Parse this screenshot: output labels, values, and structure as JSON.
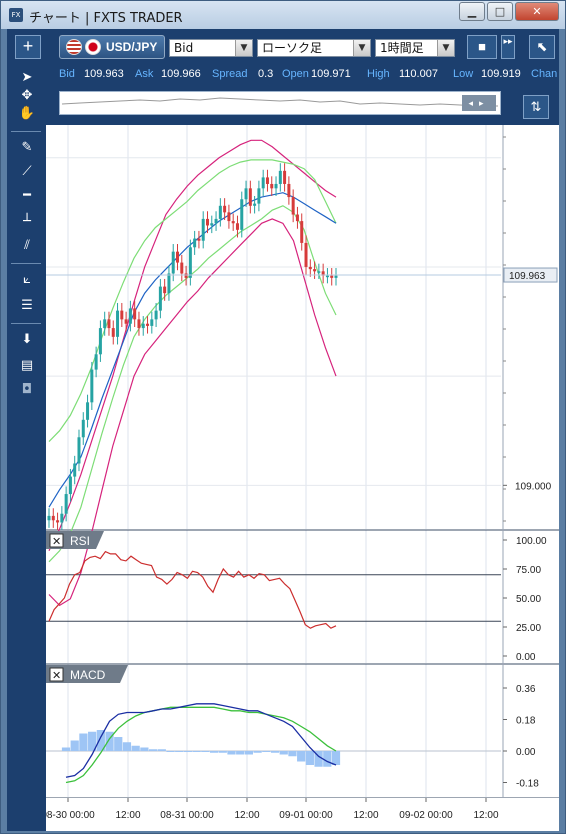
{
  "window": {
    "icon_text": "FX",
    "title": "チャート | FXTS TRADER",
    "buttons": [
      "minimize",
      "maximize",
      "close"
    ]
  },
  "toolbar": {
    "add_label": "+",
    "symbol": "USD/JPY",
    "price_type": "Bid",
    "chart_type": "ローソク足",
    "timeframe": "1時間足",
    "dropdown_arrow": "▼"
  },
  "quotes": [
    {
      "label": "Bid",
      "value": "109.963"
    },
    {
      "label": "Ask",
      "value": "109.966"
    },
    {
      "label": "Spread",
      "value": "0.3"
    },
    {
      "label": "Open",
      "value": "109.971"
    },
    {
      "label": "High",
      "value": "110.007"
    },
    {
      "label": "Low",
      "value": "109.919"
    },
    {
      "label": "Chan",
      "value": ""
    }
  ],
  "tools": [
    "cursor-arrow-icon",
    "crosshair-move-icon",
    "hand-pan-icon",
    "pen-icon",
    "trendline-icon",
    "horizontal-line-icon",
    "vertical-line-icon",
    "channel-icon",
    "fibonacci-fan-icon",
    "fibonacci-retracement-icon",
    "download-icon",
    "list-icon",
    "camera-icon"
  ],
  "panels": {
    "rsi": {
      "label": "RSI",
      "close": "✕"
    },
    "macd": {
      "label": "MACD",
      "close": "✕"
    }
  },
  "colors": {
    "toolbar_bg": "#1c3f6e",
    "candle_up": "#26a3a3",
    "candle_down": "#d63b3b",
    "bollinger_outer": "#d6237c",
    "bollinger_inner": "#7ddd76",
    "moving_average": "#1f63c5",
    "rsi_line": "#cc2e2e",
    "macd_line": "#1a2ea3",
    "signal_line": "#3cc03c",
    "histogram": "#9ec5f5"
  },
  "chart_data": [
    {
      "type": "candlestick",
      "title": "",
      "current_price": 109.963,
      "current_price_label": "109.963",
      "price_tick_label": "109.000",
      "ylim": [
        108.8,
        110.65
      ],
      "x_ticks": [
        "08-30 00:00",
        "12:00",
        "08-31 00:00",
        "12:00",
        "09-01 00:00",
        "12:00",
        "09-02 00:00",
        "12:00"
      ],
      "close_series": [
        108.86,
        108.84,
        108.83,
        108.87,
        108.96,
        109.04,
        109.1,
        109.22,
        109.3,
        109.38,
        109.53,
        109.6,
        109.72,
        109.76,
        109.72,
        109.68,
        109.8,
        109.76,
        109.74,
        109.81,
        109.76,
        109.72,
        109.74,
        109.73,
        109.76,
        109.8,
        109.91,
        109.88,
        109.97,
        110.07,
        110.02,
        109.97,
        109.95,
        110.09,
        110.13,
        110.12,
        110.22,
        110.19,
        110.2,
        110.22,
        110.28,
        110.25,
        110.21,
        110.2,
        110.17,
        110.31,
        110.36,
        110.28,
        110.29,
        110.36,
        110.41,
        110.38,
        110.36,
        110.38,
        110.44,
        110.38,
        110.32,
        110.24,
        110.21,
        110.11,
        110.0,
        109.99,
        109.98,
        109.98,
        109.96,
        109.96,
        109.95,
        109.96
      ],
      "bollinger": {
        "upper": [
          108.7,
          108.8,
          108.92,
          109.05,
          109.2,
          109.35,
          109.5,
          109.67,
          109.84,
          110.0,
          110.12,
          110.24,
          110.31,
          110.37,
          110.42,
          110.46,
          110.5,
          110.53,
          110.56,
          110.58,
          110.58,
          110.55,
          110.51,
          110.47,
          110.43,
          110.39,
          110.35,
          110.32
        ],
        "upper_inner": [
          109.2,
          109.25,
          109.32,
          109.42,
          109.54,
          109.68,
          109.81,
          109.93,
          110.04,
          110.12,
          110.18,
          110.22,
          110.26,
          110.3,
          110.35,
          110.39,
          110.43,
          110.46,
          110.48,
          110.49,
          110.49,
          110.49,
          110.48,
          110.47,
          110.45,
          110.4,
          110.3,
          110.2
        ],
        "middle": [
          108.9,
          108.98,
          109.05,
          109.13,
          109.26,
          109.4,
          109.53,
          109.66,
          109.79,
          109.88,
          109.94,
          109.99,
          110.04,
          110.09,
          110.13,
          110.17,
          110.21,
          110.24,
          110.27,
          110.3,
          110.32,
          110.33,
          110.34,
          110.32,
          110.29,
          110.26,
          110.23,
          110.2
        ],
        "lower_inner": [
          108.65,
          108.7,
          108.78,
          108.9,
          109.07,
          109.24,
          109.4,
          109.55,
          109.68,
          109.76,
          109.82,
          109.87,
          109.91,
          109.95,
          109.99,
          110.04,
          110.08,
          110.12,
          110.16,
          110.19,
          110.22,
          110.26,
          110.28,
          110.25,
          110.17,
          110.02,
          109.88,
          109.78
        ],
        "lower": [
          108.5,
          108.45,
          108.48,
          108.6,
          108.78,
          108.98,
          109.18,
          109.34,
          109.5,
          109.6,
          109.66,
          109.72,
          109.78,
          109.84,
          109.89,
          109.95,
          110.0,
          110.05,
          110.1,
          110.15,
          110.2,
          110.22,
          110.2,
          110.12,
          109.95,
          109.78,
          109.63,
          109.5
        ]
      }
    },
    {
      "type": "line",
      "title": "RSI",
      "y_ticks": [
        "100.00",
        "75.00",
        "50.00",
        "25.00",
        "0.00"
      ],
      "ylim": [
        0,
        100
      ],
      "levels": [
        70,
        30
      ],
      "values": [
        30,
        40,
        45,
        50,
        62,
        70,
        72,
        82,
        85,
        86,
        84,
        90,
        88,
        88,
        83,
        82,
        86,
        83,
        80,
        79,
        78,
        68,
        66,
        62,
        66,
        72,
        70,
        67,
        73,
        72,
        68,
        60,
        55,
        66,
        75,
        70,
        68,
        73,
        68,
        70,
        67,
        71,
        70,
        65,
        66,
        67,
        62,
        58,
        48,
        38,
        27,
        24,
        26,
        27,
        28,
        24,
        26
      ]
    },
    {
      "type": "bar+line",
      "title": "MACD",
      "y_ticks": [
        "0.36",
        "0.18",
        "0.00",
        "-0.18"
      ],
      "ylim": [
        -0.24,
        0.44
      ],
      "macd": [
        -0.15,
        -0.14,
        -0.1,
        -0.02,
        0.08,
        0.17,
        0.21,
        0.22,
        0.22,
        0.22,
        0.23,
        0.24,
        0.24,
        0.25,
        0.26,
        0.27,
        0.27,
        0.27,
        0.26,
        0.25,
        0.24,
        0.23,
        0.23,
        0.21,
        0.19,
        0.17,
        0.14,
        0.08,
        0.02,
        -0.03,
        -0.06,
        -0.08
      ],
      "signal": [
        -0.18,
        -0.17,
        -0.14,
        -0.08,
        -0.01,
        0.07,
        0.13,
        0.17,
        0.2,
        0.22,
        0.23,
        0.24,
        0.25,
        0.25,
        0.25,
        0.25,
        0.25,
        0.25,
        0.24,
        0.23,
        0.23,
        0.22,
        0.22,
        0.21,
        0.2,
        0.19,
        0.17,
        0.14,
        0.11,
        0.07,
        0.03,
        0.0
      ],
      "histogram": [
        0.02,
        0.06,
        0.1,
        0.11,
        0.12,
        0.11,
        0.08,
        0.05,
        0.03,
        0.02,
        0.01,
        0.01,
        0.0,
        0.0,
        0.0,
        0.0,
        0.0,
        -0.01,
        -0.01,
        -0.02,
        -0.02,
        -0.02,
        -0.01,
        0.0,
        -0.01,
        -0.02,
        -0.03,
        -0.06,
        -0.08,
        -0.09,
        -0.09,
        -0.08
      ]
    }
  ]
}
